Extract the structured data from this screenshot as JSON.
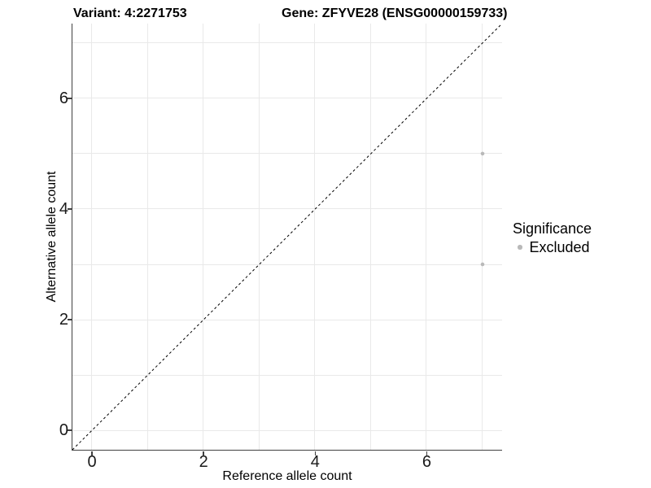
{
  "title": {
    "variant": "Variant: 4:2271753",
    "gene": "Gene: ZFYVE28 (ENSG00000159733)"
  },
  "chart_data": {
    "type": "scatter",
    "title": "Variant: 4:2271753   Gene: ZFYVE28 (ENSG00000159733)",
    "xlabel": "Reference allele count",
    "ylabel": "Alternative allele count",
    "xlim": [
      -0.35,
      7.35
    ],
    "ylim": [
      -0.35,
      7.35
    ],
    "x_ticks": [
      0,
      2,
      4,
      6
    ],
    "y_ticks": [
      0,
      2,
      4,
      6
    ],
    "grid_values_x": [
      0,
      1,
      2,
      3,
      4,
      5,
      6,
      7
    ],
    "grid_values_y": [
      0,
      1,
      2,
      3,
      4,
      5,
      6,
      7
    ],
    "grid": true,
    "legend_position": "right",
    "reference_line": {
      "type": "identity",
      "style": "dashed",
      "x1": -0.35,
      "y1": -0.35,
      "x2": 7.35,
      "y2": 7.35
    },
    "series": [
      {
        "name": "Excluded",
        "color": "#b9b9b9",
        "points": [
          [
            7,
            5
          ],
          [
            7,
            3
          ]
        ]
      }
    ],
    "legend": {
      "title": "Significance",
      "entries": [
        {
          "label": "Excluded",
          "color": "#b9b9b9"
        }
      ]
    }
  },
  "colors": {
    "axis_line": "#404040",
    "gridline": "#e9e9e9",
    "point": "#b9b9b9",
    "reference_line": "#000000",
    "tick_text": "#1a1a1a",
    "text": "#000000",
    "background": "#ffffff"
  }
}
